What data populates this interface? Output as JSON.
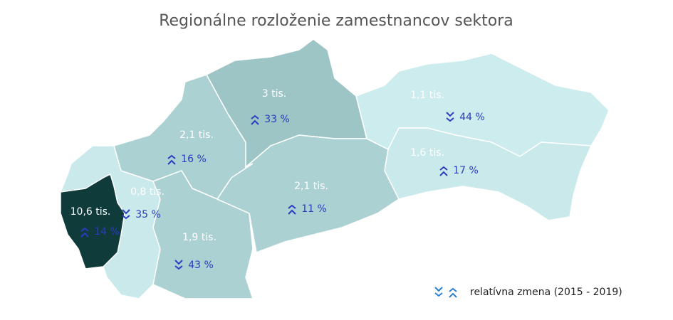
{
  "title": "Regionálne rozloženie zamestnancov sektora",
  "regions": [
    {
      "count": "10,6 tis.",
      "change": "14 %",
      "trend": "up"
    },
    {
      "count": "0,8 tis.",
      "change": "35 %",
      "trend": "down"
    },
    {
      "count": "2,1 tis.",
      "change": "16 %",
      "trend": "up"
    },
    {
      "count": "1,9 tis.",
      "change": "43 %",
      "trend": "down"
    },
    {
      "count": "3 tis.",
      "change": "33 %",
      "trend": "up"
    },
    {
      "count": "2,1 tis.",
      "change": "11 %",
      "trend": "up"
    },
    {
      "count": "1,1 tis.",
      "change": "44 %",
      "trend": "down"
    },
    {
      "count": "1,6 tis.",
      "change": "17 %",
      "trend": "up"
    }
  ],
  "legend": {
    "label": "relatívna zmena (2015 - 2019)"
  }
}
